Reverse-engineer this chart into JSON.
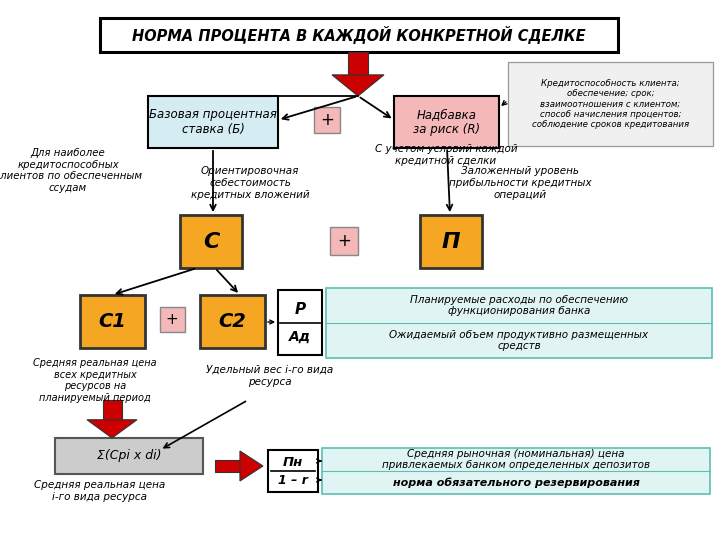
{
  "title": "НОРМА ПРОЦЕНТА В КАЖДОЙ КОНКРЕТНОЙ СДЕЛКЕ",
  "bg_color": "#ffffff",
  "box_B_color": "#d6ecf3",
  "box_B_text": "Базовая процентная\nставка (Б)",
  "box_R_color": "#f4b8b8",
  "box_R_text": "Надбавка\nза риск (R)",
  "plus_color": "#f4b8b8",
  "box_C_color": "#f5a623",
  "box_C_text": "С",
  "box_P_color": "#f5a623",
  "box_P_text": "П",
  "box_C1_color": "#f5a623",
  "box_C1_text": "С1",
  "box_C2_color": "#f5a623",
  "box_C2_text": "С2",
  "box_Sum_color": "#cccccc",
  "box_Sum_text": "Σ(Cpi x di)",
  "note_right_top": "Кредитоспособность клиента;\nобеспечение; срок;\nвзаимоотношения с клиентом;\nспособ начисления процентов;\nсоблюдение сроков кредитования",
  "note_B_left": "Для наиболее\nкредитоспособных\nклиентов по обеспеченным\nссудам",
  "note_R_bot": "С учетом условий каждой\nкредитной сделки",
  "note_C_label": "Ориентировочная\nсебестоимость\nкредитных вложений",
  "note_P_label": "Заложенный уровень\nприбыльности кредитных\nопераций",
  "note_C1_bot": "Средняя реальная цена\nвсех кредитных\nресурсов на\nпланируемый период",
  "note_C2_bot": "Удельный вес i-го вида\nресурса",
  "note_PAd_top": "Планируемые расходы по обеспечению\nфункционирования банка",
  "note_PAd_bot": "Ожидаемый объем продуктивно размещенных\nсредств",
  "note_Sum_bot": "Средняя реальная цена\ni-го вида ресурса",
  "note_Pn_top": "Средняя рыночная (номинальная) цена\nпривлекаемых банком определенных депозитов",
  "note_Pn_bot": "норма обязательного резервирования",
  "teal_color": "#e0f5f3",
  "teal_border": "#5bbfb5",
  "red_arrow": "#cc0000"
}
